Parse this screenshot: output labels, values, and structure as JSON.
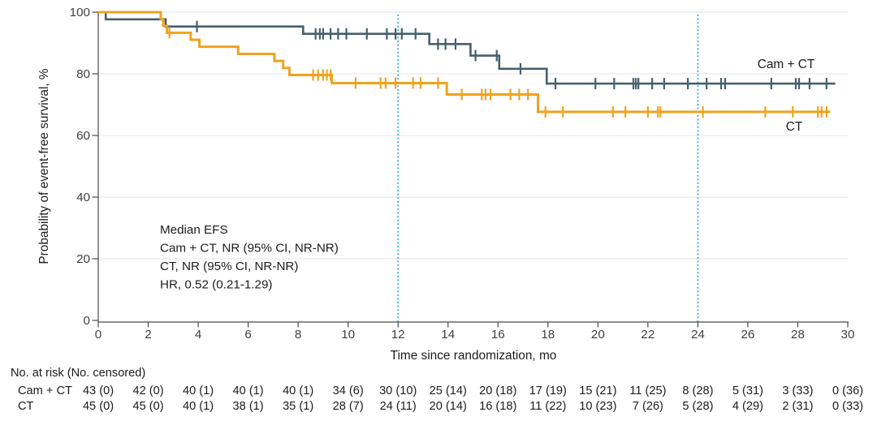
{
  "chart_data": {
    "type": "line",
    "subtype": "kaplan-meier-step",
    "grid": "horizontal",
    "x_axis": {
      "title": "Time since randomization, mo",
      "ticks": [
        0,
        2,
        4,
        6,
        8,
        10,
        12,
        14,
        16,
        18,
        20,
        22,
        24,
        26,
        28,
        30
      ],
      "range": [
        0,
        30
      ]
    },
    "y_axis": {
      "title": "Probability of event-free survival, %",
      "ticks": [
        0,
        20,
        40,
        60,
        80,
        100
      ],
      "range": [
        0,
        100
      ]
    },
    "reference_lines": {
      "months": [
        12,
        24
      ],
      "color": "#2FAFE3",
      "style": "dotted"
    },
    "annotation": {
      "lines": [
        "Median EFS",
        "Cam + CT, NR (95% CI, NR-NR)",
        "CT, NR (95% CI, NR-NR)",
        "HR, 0.52 (0.21-1.29)"
      ]
    },
    "series": [
      {
        "label": "Cam + CT",
        "color": "#44606E",
        "line_width": 2.6,
        "end_month": 29.5,
        "steps": [
          [
            0,
            100
          ],
          [
            0.3,
            97.67
          ],
          [
            2.7,
            95.35
          ],
          [
            8.2,
            92.97
          ],
          [
            13.25,
            89.65
          ],
          [
            14.9,
            85.91
          ],
          [
            16.05,
            81.62
          ],
          [
            17.95,
            76.82
          ]
        ],
        "censors": [
          3.95,
          8.7,
          8.87,
          9.0,
          9.3,
          9.6,
          9.93,
          10.75,
          11.55,
          11.9,
          12.15,
          12.7,
          13.6,
          13.9,
          14.3,
          15.1,
          15.95,
          16.9,
          18.3,
          19.9,
          20.65,
          21.42,
          21.52,
          21.62,
          22.17,
          22.65,
          23.6,
          24.35,
          24.93,
          25.09,
          26.94,
          27.92,
          28.05,
          28.47,
          29.15
        ]
      },
      {
        "label": "CT",
        "color": "#EEA320",
        "line_width": 3,
        "end_month": 29.3,
        "steps": [
          [
            0,
            100
          ],
          [
            2.5,
            97.78
          ],
          [
            2.6,
            95.56
          ],
          [
            2.75,
            93.33
          ],
          [
            3.7,
            91.06
          ],
          [
            4.05,
            88.78
          ],
          [
            5.6,
            86.45
          ],
          [
            7.05,
            84.17
          ],
          [
            7.4,
            81.9
          ],
          [
            7.65,
            79.62
          ],
          [
            9.35,
            76.97
          ],
          [
            13.95,
            73.3
          ],
          [
            17.6,
            67.66
          ]
        ],
        "censors": [
          2.85,
          8.6,
          8.8,
          9.0,
          9.15,
          9.3,
          10.3,
          11.3,
          11.5,
          11.9,
          12.6,
          12.9,
          13.6,
          14.55,
          15.35,
          15.5,
          15.7,
          16.5,
          16.85,
          17.2,
          17.9,
          18.6,
          20.6,
          21.1,
          22.0,
          22.4,
          22.5,
          24.2,
          26.7,
          27.8,
          28.8,
          28.95,
          29.15
        ]
      }
    ]
  },
  "risk_table": {
    "title": "No. at risk (No. censored)",
    "times": [
      0,
      2,
      4,
      6,
      8,
      10,
      12,
      14,
      16,
      18,
      20,
      22,
      24,
      26,
      28,
      30
    ],
    "rows": [
      {
        "label": "Cam + CT",
        "values": [
          "43 (0)",
          "42 (0)",
          "40 (1)",
          "40 (1)",
          "40 (1)",
          "34 (6)",
          "30 (10)",
          "25 (14)",
          "20 (18)",
          "17 (19)",
          "15 (21)",
          "11 (25)",
          "8 (28)",
          "5 (31)",
          "3 (33)",
          "0 (36)"
        ]
      },
      {
        "label": "CT",
        "values": [
          "45 (0)",
          "45 (0)",
          "40 (1)",
          "38 (1)",
          "35 (1)",
          "28 (7)",
          "24 (11)",
          "20 (14)",
          "16 (18)",
          "11 (22)",
          "10 (23)",
          "7 (26)",
          "5 (28)",
          "4 (29)",
          "2 (31)",
          "0 (33)"
        ]
      }
    ]
  }
}
